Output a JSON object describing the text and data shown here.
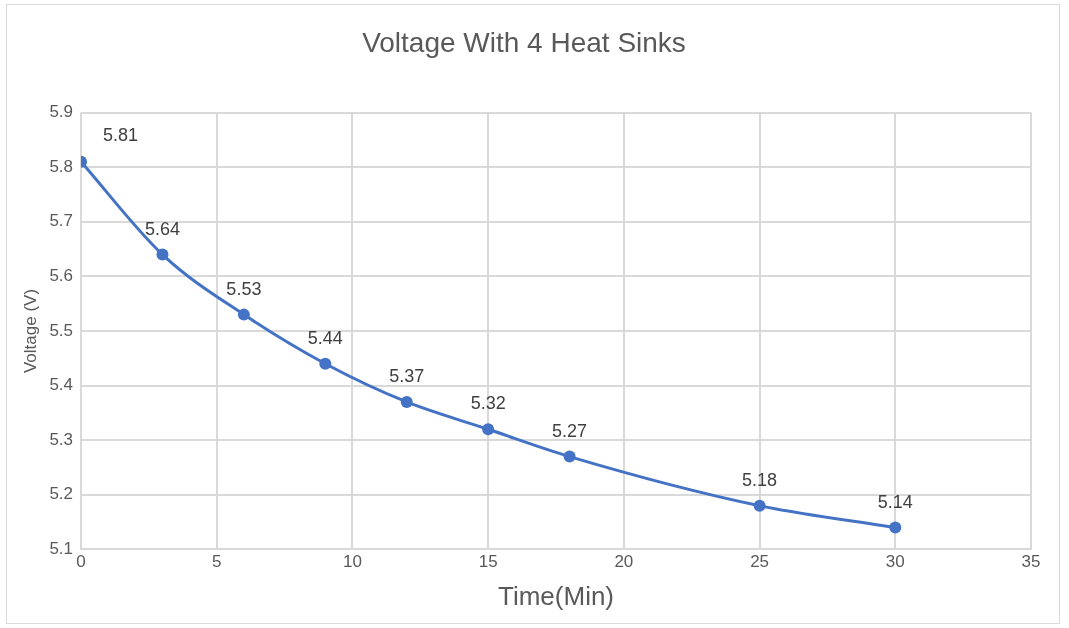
{
  "chart_data": {
    "type": "line",
    "title": "Voltage With 4 Heat Sinks",
    "xlabel": "Time(Min)",
    "ylabel": "Voltage (V)",
    "x": [
      0,
      3,
      6,
      9,
      12,
      15,
      18,
      25,
      30
    ],
    "series": [
      {
        "color": "#4472c4",
        "values": [
          5.81,
          5.64,
          5.53,
          5.44,
          5.37,
          5.32,
          5.27,
          5.18,
          5.14
        ]
      }
    ],
    "xlim": [
      0,
      35
    ],
    "xticks": [
      0,
      5,
      10,
      15,
      20,
      25,
      30,
      35
    ],
    "ylim": [
      5.1,
      5.9
    ],
    "yticks": [
      5.1,
      5.2,
      5.3,
      5.4,
      5.5,
      5.6,
      5.7,
      5.8,
      5.9
    ],
    "grid": true,
    "legend": false,
    "marker": "circle",
    "line_style": "solid",
    "data_labels": true
  }
}
